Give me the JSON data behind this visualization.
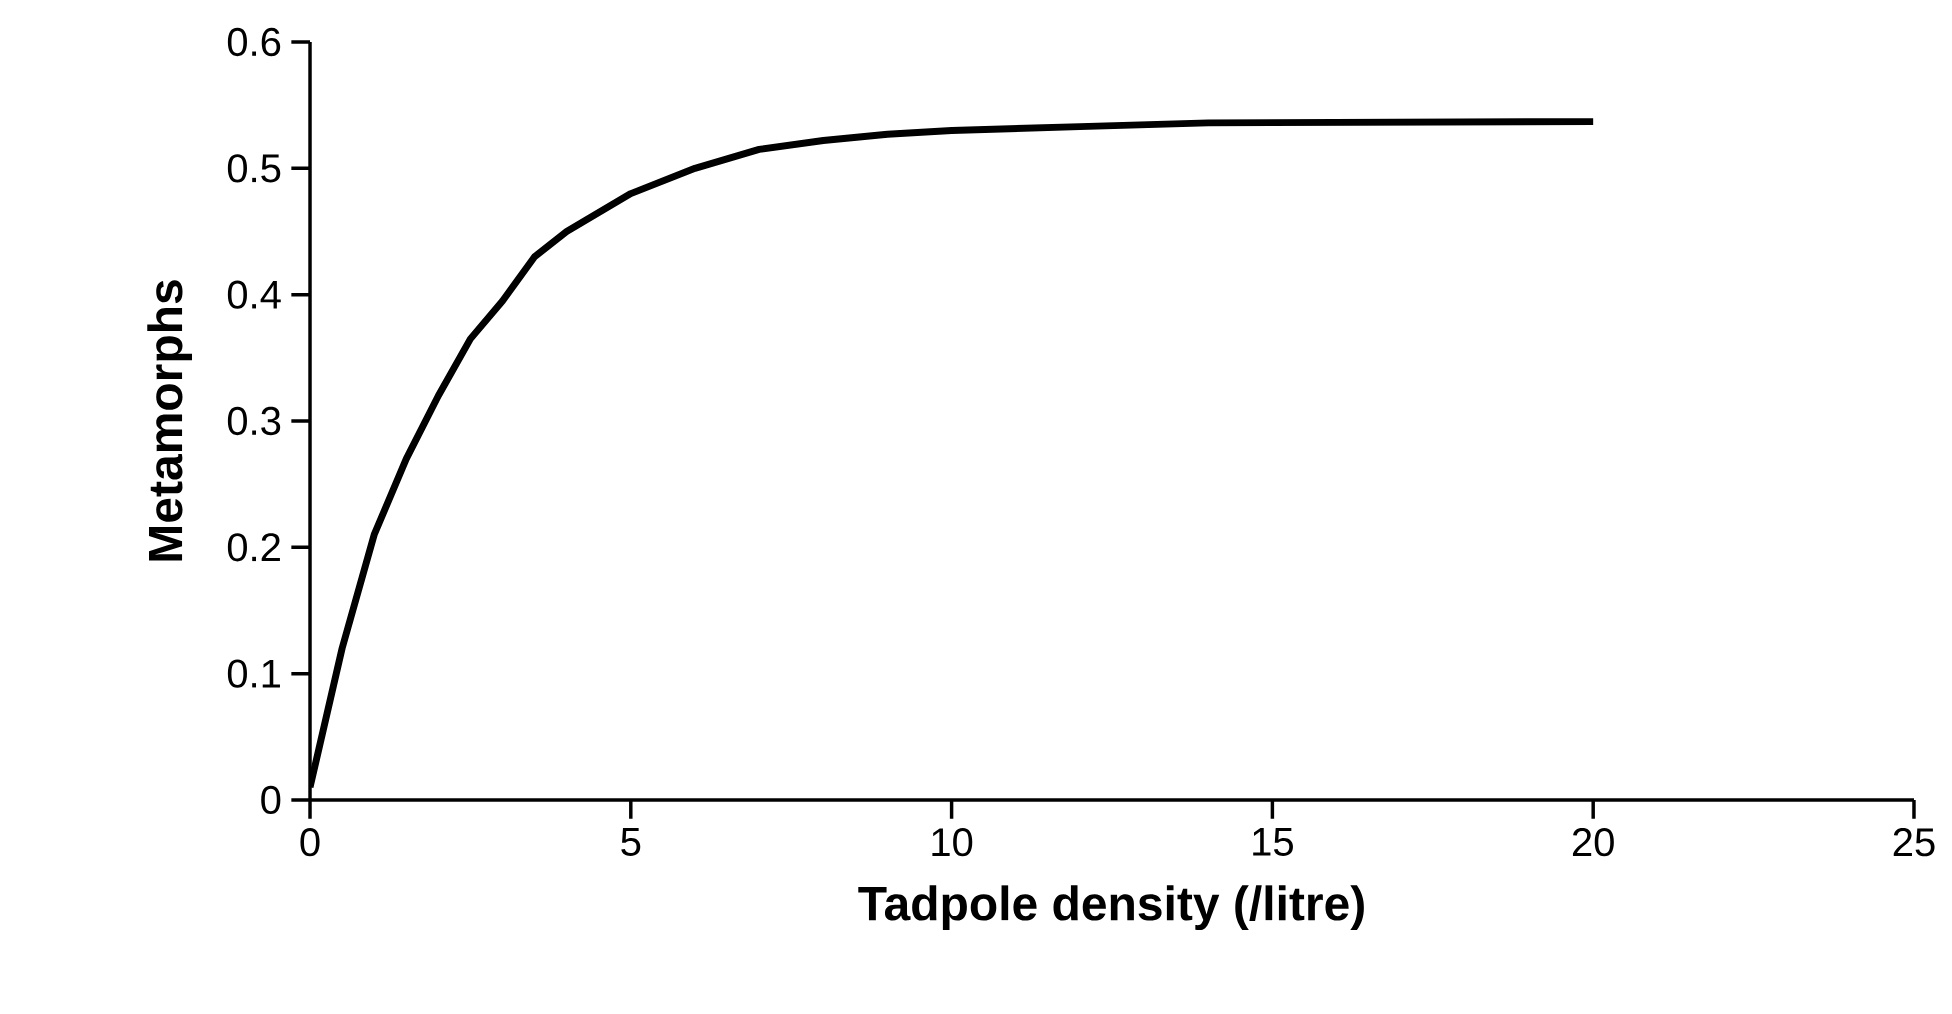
{
  "chart_data": {
    "type": "line",
    "xlabel": "Tadpole density (/litre)",
    "ylabel": "Metamorphs",
    "x": [
      0,
      0.5,
      1,
      1.5,
      2,
      2.5,
      3,
      3.5,
      4,
      5,
      6,
      7,
      8,
      9,
      10,
      12,
      14,
      20
    ],
    "series": [
      {
        "color": "#000000",
        "values": [
          0.01,
          0.12,
          0.21,
          0.27,
          0.32,
          0.365,
          0.395,
          0.43,
          0.45,
          0.48,
          0.5,
          0.515,
          0.522,
          0.527,
          0.53,
          0.533,
          0.536,
          0.537
        ]
      }
    ],
    "xlim": [
      0,
      25
    ],
    "ylim": [
      0,
      0.6
    ],
    "xticks": [
      0,
      5,
      10,
      15,
      20,
      25
    ],
    "yticks": [
      {
        "value": 0,
        "label": "0"
      },
      {
        "value": 0.1,
        "label": "0.1"
      },
      {
        "value": 0.2,
        "label": "0.2"
      },
      {
        "value": 0.3,
        "label": "0.3"
      },
      {
        "value": 0.4,
        "label": "0.4"
      },
      {
        "value": 0.5,
        "label": "0.5"
      },
      {
        "value": 0.6,
        "label": "0.6"
      }
    ],
    "grid": false,
    "legend": false,
    "marker": "none",
    "line_style": "solid"
  }
}
